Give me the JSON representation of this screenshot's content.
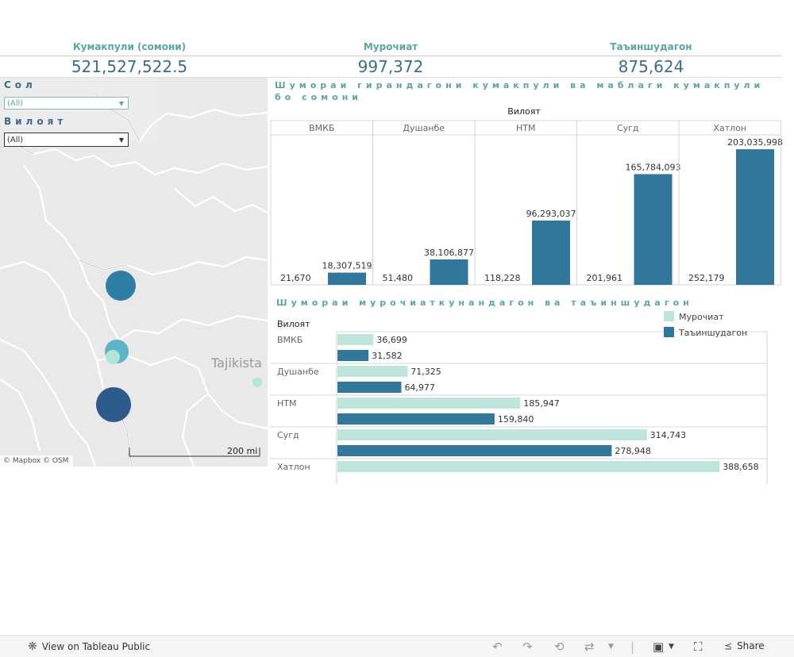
{
  "kpis": [
    {
      "label": "Кумакпули (сомони)",
      "value": "521,527,522.5"
    },
    {
      "label": "Мурочиат",
      "value": "997,372"
    },
    {
      "label": "Таъиншудагон",
      "value": "875,624"
    }
  ],
  "filters": {
    "year_label": "Сол",
    "year_value": "(All)",
    "region_label": "Вилоят",
    "region_value": "(All)"
  },
  "map": {
    "country_label": "Tajikista",
    "attribution": "© Mapbox  © OSM",
    "scale_label": "200 mi",
    "colors": {
      "land": "#e9e9e9",
      "border": "#ffffff",
      "bubble_dark": "#2d5b8c",
      "bubble_mid": "#2f7ea3",
      "bubble_light": "#5ab5c7",
      "bubble_pale": "#b5e3dc"
    }
  },
  "chart_data": [
    {
      "type": "bar",
      "title": "Шумораи гирандагони кумакпули ва маблаги кумакпули бо сомони",
      "xlabel": "Вилоят",
      "categories": [
        "ВМКБ",
        "Душанбе",
        "НТМ",
        "Сугд",
        "Хатлон"
      ],
      "series": [
        {
          "values": [
            21670,
            51480,
            118228,
            201961,
            252179
          ],
          "labels": [
            "21,670",
            "51,480",
            "118,228",
            "201,961",
            "252,179"
          ]
        },
        {
          "values": [
            18307519,
            38106877,
            96293037,
            165784093,
            203035998
          ],
          "labels": [
            "18,307,519",
            "38,106,877",
            "96,293,037",
            "165,784,093",
            "203,035,998"
          ]
        }
      ],
      "ylim": [
        0,
        215000000
      ],
      "colors": {
        "bar": "#31769b",
        "grid": "#d4d4d4"
      }
    },
    {
      "type": "bar",
      "orientation": "horizontal",
      "title": "Шумораи мурочиаткунандагон ва таъиншудагон",
      "ylabel": "Вилоят",
      "categories": [
        "ВМКБ",
        "Душанбе",
        "НТМ",
        "Сугд",
        "Хатлон"
      ],
      "series": [
        {
          "name": "Мурочиат",
          "values": [
            36699,
            71325,
            185947,
            314743,
            388658
          ],
          "labels": [
            "36,699",
            "71,325",
            "185,947",
            "314,743",
            "388,658"
          ],
          "color": "#bde5db"
        },
        {
          "name": "Таъиншудагон",
          "values": [
            31582,
            64977,
            159840,
            278948,
            null
          ],
          "labels": [
            "31,582",
            "64,977",
            "159,840",
            "278,948",
            ""
          ],
          "color": "#31769b"
        }
      ],
      "xlim": [
        0,
        420000
      ],
      "legend": "top-right"
    }
  ],
  "footer": {
    "view_label": "View on Tableau Public",
    "share_label": "Share"
  }
}
